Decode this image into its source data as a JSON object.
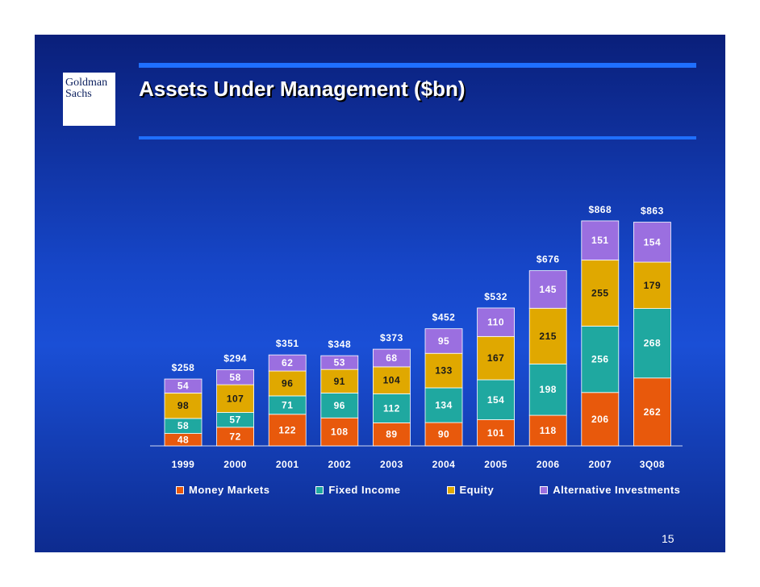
{
  "slide": {
    "title": "Assets Under Management ($bn)",
    "logo_line1": "Goldman",
    "logo_line2": "Sachs",
    "page_number": "15"
  },
  "colors": {
    "money_markets": "#e8590c",
    "fixed_income": "#1fa8a0",
    "equity": "#e0a800",
    "alternative": "#9b6fe0"
  },
  "chart_data": {
    "type": "bar",
    "stacked": true,
    "categories": [
      "1999",
      "2000",
      "2001",
      "2002",
      "2003",
      "2004",
      "2005",
      "2006",
      "2007",
      "3Q08"
    ],
    "series": [
      {
        "name": "Money Markets",
        "values": [
          48,
          72,
          122,
          108,
          89,
          90,
          101,
          118,
          206,
          262
        ]
      },
      {
        "name": "Fixed Income",
        "values": [
          58,
          57,
          71,
          96,
          112,
          134,
          154,
          198,
          256,
          268
        ]
      },
      {
        "name": "Equity",
        "values": [
          98,
          107,
          96,
          91,
          104,
          133,
          167,
          215,
          255,
          179
        ]
      },
      {
        "name": "Alternative Investments",
        "values": [
          54,
          58,
          62,
          53,
          68,
          95,
          110,
          145,
          151,
          154
        ]
      }
    ],
    "totals": [
      "$258",
      "$294",
      "$351",
      "$348",
      "$373",
      "$452",
      "$532",
      "$676",
      "$868",
      "$863"
    ],
    "ylim": [
      0,
      900
    ],
    "grid": false,
    "legend_position": "bottom"
  }
}
